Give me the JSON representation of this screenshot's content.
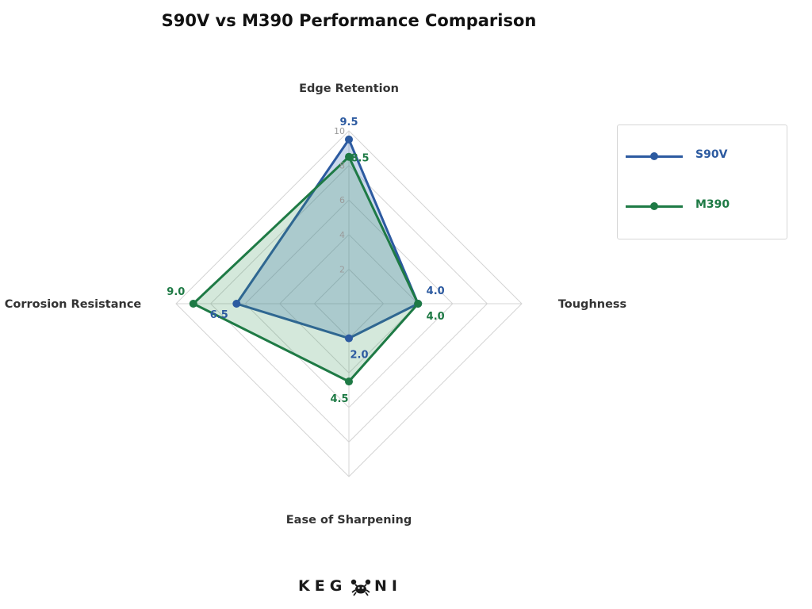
{
  "chart_data": {
    "type": "radar",
    "title": "S90V vs M390 Performance Comparison",
    "axes": [
      "Edge Retention",
      "Toughness",
      "Ease of Sharpening",
      "Corrosion Resistance"
    ],
    "range": [
      0,
      10
    ],
    "ticks": [
      "2",
      "4",
      "6",
      "8",
      "10"
    ],
    "tick_values": [
      2,
      4,
      6,
      8,
      10
    ],
    "grid": true,
    "legend_position": "right",
    "series": [
      {
        "name": "S90V",
        "values": [
          9.5,
          4.0,
          2.0,
          6.5
        ],
        "labels": [
          "9.5",
          "4.0",
          "2.0",
          "6.5"
        ],
        "color": "#2c5aa0",
        "fill": "rgba(70,120,190,0.28)"
      },
      {
        "name": "M390",
        "values": [
          8.5,
          4.0,
          4.5,
          9.0
        ],
        "labels": [
          "8.5",
          "4.0",
          "4.5",
          "9.0"
        ],
        "color": "#1e7a45",
        "fill": "rgba(60,150,90,0.22)"
      }
    ]
  },
  "logo": {
    "text_left": "KEG",
    "text_right": "NI",
    "icon": "crab-icon"
  }
}
